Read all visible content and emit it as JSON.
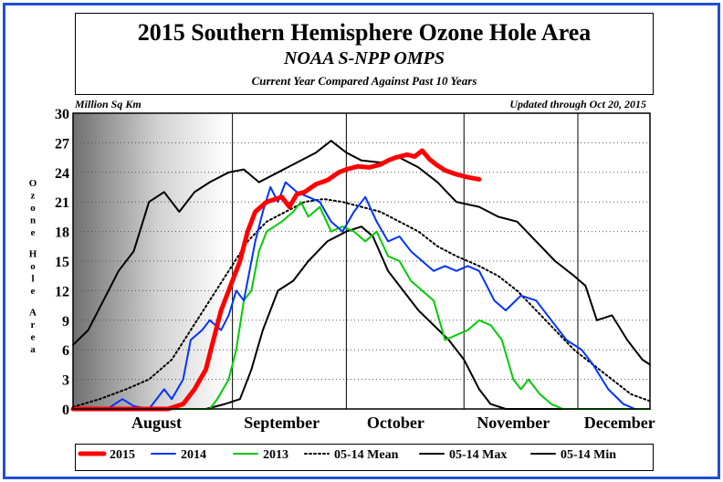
{
  "header": {
    "title": "2015 Southern Hemisphere Ozone Hole Area",
    "subtitle": "NOAA S-NPP OMPS",
    "note": "Current Year Compared Against Past 10 Years"
  },
  "chart_data": {
    "type": "line",
    "units_label": "Million Sq Km",
    "updated": "Updated through Oct 20, 2015",
    "ylabel": "Ozone Hole Area",
    "ylim": [
      0,
      30
    ],
    "yticks": [
      0,
      3,
      6,
      9,
      12,
      15,
      18,
      21,
      24,
      27,
      30
    ],
    "x_unit": "date",
    "xlim": [
      "2015-07-21",
      "2015-12-20"
    ],
    "month_boundaries": [
      "2015-09-01",
      "2015-10-01",
      "2015-11-01",
      "2015-12-01"
    ],
    "month_labels": [
      {
        "label": "August",
        "date": "2015-08-12"
      },
      {
        "label": "September",
        "date": "2015-09-14"
      },
      {
        "label": "October",
        "date": "2015-10-14"
      },
      {
        "label": "November",
        "date": "2015-11-14"
      },
      {
        "label": "December",
        "date": "2015-12-12"
      }
    ],
    "shaded_region": [
      "2015-07-21",
      "2015-08-31"
    ],
    "series": [
      {
        "name": "2015",
        "color": "#ff0000",
        "style": "solid-thick",
        "points": [
          [
            "2015-07-21",
            0
          ],
          [
            "2015-08-15",
            0
          ],
          [
            "2015-08-19",
            0.5
          ],
          [
            "2015-08-22",
            2
          ],
          [
            "2015-08-25",
            4
          ],
          [
            "2015-08-27",
            7
          ],
          [
            "2015-08-29",
            10
          ],
          [
            "2015-08-31",
            12
          ],
          [
            "2015-09-03",
            15
          ],
          [
            "2015-09-05",
            18
          ],
          [
            "2015-09-07",
            20
          ],
          [
            "2015-09-10",
            21
          ],
          [
            "2015-09-14",
            21.5
          ],
          [
            "2015-09-16",
            20.5
          ],
          [
            "2015-09-18",
            21.8
          ],
          [
            "2015-09-20",
            22
          ],
          [
            "2015-09-23",
            22.8
          ],
          [
            "2015-09-26",
            23.2
          ],
          [
            "2015-09-29",
            24
          ],
          [
            "2015-10-01",
            24.3
          ],
          [
            "2015-10-04",
            24.6
          ],
          [
            "2015-10-07",
            24.5
          ],
          [
            "2015-10-10",
            24.8
          ],
          [
            "2015-10-12",
            25.2
          ],
          [
            "2015-10-14",
            25.5
          ],
          [
            "2015-10-17",
            25.8
          ],
          [
            "2015-10-19",
            25.6
          ],
          [
            "2015-10-21",
            26.2
          ],
          [
            "2015-10-23",
            25.3
          ],
          [
            "2015-10-25",
            24.7
          ],
          [
            "2015-10-27",
            24.2
          ],
          [
            "2015-10-30",
            23.8
          ],
          [
            "2015-11-02",
            23.5
          ],
          [
            "2015-11-05",
            23.3
          ]
        ]
      },
      {
        "name": "2014",
        "color": "#0033ff",
        "style": "solid",
        "points": [
          [
            "2015-07-21",
            0
          ],
          [
            "2015-07-30",
            0
          ],
          [
            "2015-08-03",
            1
          ],
          [
            "2015-08-06",
            0.3
          ],
          [
            "2015-08-10",
            0
          ],
          [
            "2015-08-14",
            2
          ],
          [
            "2015-08-16",
            1
          ],
          [
            "2015-08-19",
            3
          ],
          [
            "2015-08-21",
            7
          ],
          [
            "2015-08-24",
            8
          ],
          [
            "2015-08-26",
            9
          ],
          [
            "2015-08-29",
            8
          ],
          [
            "2015-08-31",
            9.5
          ],
          [
            "2015-09-02",
            12
          ],
          [
            "2015-09-04",
            11
          ],
          [
            "2015-09-07",
            17
          ],
          [
            "2015-09-09",
            20
          ],
          [
            "2015-09-11",
            22.5
          ],
          [
            "2015-09-13",
            21
          ],
          [
            "2015-09-15",
            23
          ],
          [
            "2015-09-18",
            22
          ],
          [
            "2015-09-21",
            21.5
          ],
          [
            "2015-09-24",
            21
          ],
          [
            "2015-09-27",
            19
          ],
          [
            "2015-09-30",
            18
          ],
          [
            "2015-10-03",
            20
          ],
          [
            "2015-10-06",
            21.5
          ],
          [
            "2015-10-09",
            19
          ],
          [
            "2015-10-12",
            17
          ],
          [
            "2015-10-15",
            17.5
          ],
          [
            "2015-10-18",
            16
          ],
          [
            "2015-10-21",
            15
          ],
          [
            "2015-10-24",
            14
          ],
          [
            "2015-10-27",
            14.5
          ],
          [
            "2015-10-30",
            14
          ],
          [
            "2015-11-02",
            14.5
          ],
          [
            "2015-11-05",
            14
          ],
          [
            "2015-11-09",
            11
          ],
          [
            "2015-11-12",
            10
          ],
          [
            "2015-11-16",
            11.5
          ],
          [
            "2015-11-20",
            11
          ],
          [
            "2015-11-24",
            9
          ],
          [
            "2015-11-28",
            7
          ],
          [
            "2015-12-02",
            6
          ],
          [
            "2015-12-05",
            4.5
          ],
          [
            "2015-12-09",
            2
          ],
          [
            "2015-12-13",
            0.5
          ],
          [
            "2015-12-16",
            0
          ]
        ]
      },
      {
        "name": "2013",
        "color": "#00cc00",
        "style": "solid",
        "points": [
          [
            "2015-07-21",
            0
          ],
          [
            "2015-08-26",
            0
          ],
          [
            "2015-08-28",
            1
          ],
          [
            "2015-08-31",
            3
          ],
          [
            "2015-09-02",
            6
          ],
          [
            "2015-09-04",
            11
          ],
          [
            "2015-09-06",
            12
          ],
          [
            "2015-09-08",
            16
          ],
          [
            "2015-09-10",
            18
          ],
          [
            "2015-09-12",
            18.5
          ],
          [
            "2015-09-14",
            19
          ],
          [
            "2015-09-17",
            20
          ],
          [
            "2015-09-19",
            21
          ],
          [
            "2015-09-21",
            19.5
          ],
          [
            "2015-09-24",
            20.5
          ],
          [
            "2015-09-27",
            18
          ],
          [
            "2015-09-30",
            18.5
          ],
          [
            "2015-10-03",
            18
          ],
          [
            "2015-10-06",
            17
          ],
          [
            "2015-10-09",
            18
          ],
          [
            "2015-10-12",
            15.5
          ],
          [
            "2015-10-15",
            15
          ],
          [
            "2015-10-18",
            13
          ],
          [
            "2015-10-21",
            12
          ],
          [
            "2015-10-24",
            11
          ],
          [
            "2015-10-27",
            7
          ],
          [
            "2015-10-30",
            7.5
          ],
          [
            "2015-11-02",
            8
          ],
          [
            "2015-11-05",
            9
          ],
          [
            "2015-11-08",
            8.5
          ],
          [
            "2015-11-11",
            7
          ],
          [
            "2015-11-14",
            3
          ],
          [
            "2015-11-16",
            2
          ],
          [
            "2015-11-18",
            3
          ],
          [
            "2015-11-21",
            1.5
          ],
          [
            "2015-11-24",
            0.5
          ],
          [
            "2015-11-27",
            0
          ],
          [
            "2015-12-20",
            0
          ]
        ]
      },
      {
        "name": "05-14 Mean",
        "color": "#000000",
        "style": "dotted",
        "points": [
          [
            "2015-07-21",
            0.2
          ],
          [
            "2015-07-28",
            1
          ],
          [
            "2015-08-04",
            2
          ],
          [
            "2015-08-10",
            3
          ],
          [
            "2015-08-16",
            5
          ],
          [
            "2015-08-21",
            8
          ],
          [
            "2015-08-26",
            11
          ],
          [
            "2015-08-31",
            14
          ],
          [
            "2015-09-05",
            17
          ],
          [
            "2015-09-10",
            19
          ],
          [
            "2015-09-15",
            20
          ],
          [
            "2015-09-20",
            21
          ],
          [
            "2015-09-25",
            21.3
          ],
          [
            "2015-09-30",
            21
          ],
          [
            "2015-10-05",
            20.5
          ],
          [
            "2015-10-10",
            20
          ],
          [
            "2015-10-15",
            19
          ],
          [
            "2015-10-20",
            18
          ],
          [
            "2015-10-25",
            16.5
          ],
          [
            "2015-10-30",
            15.5
          ],
          [
            "2015-11-05",
            14.5
          ],
          [
            "2015-11-10",
            13.5
          ],
          [
            "2015-11-15",
            12
          ],
          [
            "2015-11-20",
            10
          ],
          [
            "2015-11-25",
            8
          ],
          [
            "2015-11-30",
            6
          ],
          [
            "2015-12-05",
            4.5
          ],
          [
            "2015-12-10",
            3
          ],
          [
            "2015-12-15",
            1.5
          ],
          [
            "2015-12-20",
            0.8
          ]
        ]
      },
      {
        "name": "05-14 Max",
        "color": "#000000",
        "style": "solid",
        "points": [
          [
            "2015-07-21",
            6.5
          ],
          [
            "2015-07-25",
            8
          ],
          [
            "2015-07-29",
            11
          ],
          [
            "2015-08-02",
            14
          ],
          [
            "2015-08-06",
            16
          ],
          [
            "2015-08-10",
            21
          ],
          [
            "2015-08-14",
            22
          ],
          [
            "2015-08-18",
            20
          ],
          [
            "2015-08-22",
            22
          ],
          [
            "2015-08-26",
            23
          ],
          [
            "2015-08-31",
            24
          ],
          [
            "2015-09-04",
            24.3
          ],
          [
            "2015-09-08",
            23
          ],
          [
            "2015-09-13",
            24
          ],
          [
            "2015-09-18",
            25
          ],
          [
            "2015-09-23",
            26
          ],
          [
            "2015-09-27",
            27.2
          ],
          [
            "2015-10-01",
            26
          ],
          [
            "2015-10-05",
            25.2
          ],
          [
            "2015-10-10",
            25
          ],
          [
            "2015-10-15",
            25.5
          ],
          [
            "2015-10-20",
            24.5
          ],
          [
            "2015-10-25",
            23
          ],
          [
            "2015-10-30",
            21
          ],
          [
            "2015-11-05",
            20.5
          ],
          [
            "2015-11-10",
            19.5
          ],
          [
            "2015-11-15",
            19
          ],
          [
            "2015-11-20",
            17
          ],
          [
            "2015-11-25",
            15
          ],
          [
            "2015-11-30",
            13.5
          ],
          [
            "2015-12-03",
            12.5
          ],
          [
            "2015-12-06",
            9
          ],
          [
            "2015-12-10",
            9.5
          ],
          [
            "2015-12-14",
            7
          ],
          [
            "2015-12-18",
            5
          ],
          [
            "2015-12-20",
            4.5
          ]
        ]
      },
      {
        "name": "05-14 Min",
        "color": "#000000",
        "style": "solid",
        "points": [
          [
            "2015-07-21",
            0
          ],
          [
            "2015-08-25",
            0
          ],
          [
            "2015-08-30",
            0.5
          ],
          [
            "2015-09-03",
            1
          ],
          [
            "2015-09-06",
            4
          ],
          [
            "2015-09-09",
            8
          ],
          [
            "2015-09-13",
            12
          ],
          [
            "2015-09-17",
            13
          ],
          [
            "2015-09-21",
            15
          ],
          [
            "2015-09-26",
            17
          ],
          [
            "2015-10-01",
            18
          ],
          [
            "2015-10-05",
            18.5
          ],
          [
            "2015-10-08",
            17.5
          ],
          [
            "2015-10-12",
            14
          ],
          [
            "2015-10-16",
            12
          ],
          [
            "2015-10-20",
            10
          ],
          [
            "2015-10-24",
            8.5
          ],
          [
            "2015-10-28",
            7
          ],
          [
            "2015-11-01",
            5
          ],
          [
            "2015-11-05",
            2
          ],
          [
            "2015-11-08",
            0.5
          ],
          [
            "2015-11-12",
            0
          ],
          [
            "2015-12-20",
            0
          ]
        ]
      }
    ]
  }
}
